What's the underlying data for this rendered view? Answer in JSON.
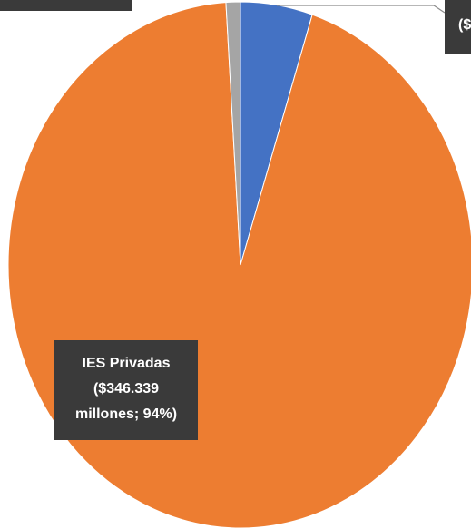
{
  "chart_data": {
    "type": "pie",
    "series": [
      {
        "values": [
          5,
          94,
          1
        ],
        "colors": [
          "#4472c4",
          "#ed7d31",
          "#a5a5a5"
        ]
      }
    ],
    "labels": [
      [
        "($"
      ],
      [
        "IES Privadas",
        "($346.339",
        "millones; 94%)"
      ],
      null
    ]
  }
}
